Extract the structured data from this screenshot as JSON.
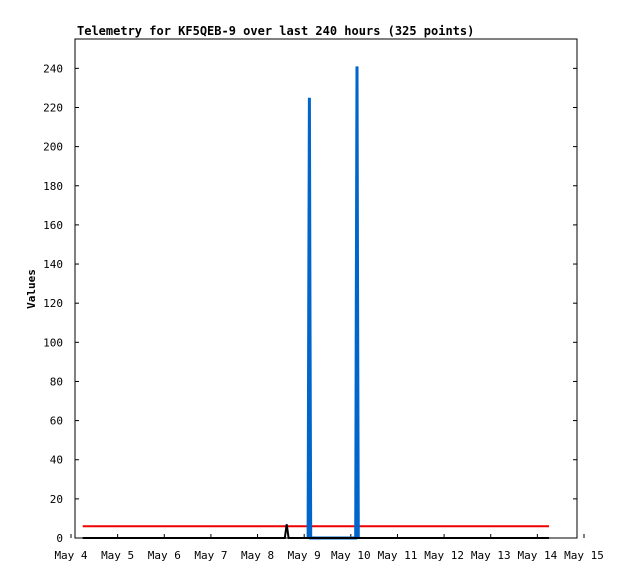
{
  "chart_data": {
    "type": "line",
    "title": "Telemetry for KF5QEB-9 over last 240 hours (325 points)",
    "xlabel": "",
    "ylabel": "Values",
    "x_tick_labels": [
      "May 4",
      "May 5",
      "May 6",
      "May 7",
      "May 8",
      "May 9",
      "May 10",
      "May 11",
      "May 12",
      "May 13",
      "May 14",
      "May 15"
    ],
    "y_ticks": [
      0,
      20,
      40,
      60,
      80,
      100,
      120,
      140,
      160,
      180,
      200,
      220,
      240
    ],
    "xlim": [
      "May 4",
      "May 15"
    ],
    "ylim": [
      0,
      255
    ],
    "grid": false,
    "series": [
      {
        "color": "#ee0000",
        "points": [
          [
            "May 4 06:00",
            6
          ],
          [
            "May 14 06:00",
            6
          ]
        ]
      },
      {
        "color": "#0066cc",
        "points": [
          [
            "May 9 02:00",
            0
          ],
          [
            "May 9 02:20",
            112
          ],
          [
            "May 9 02:40",
            225
          ],
          [
            "May 9 03:00",
            112
          ],
          [
            "May 9 03:20",
            0
          ],
          [
            "May 10 02:30",
            0
          ],
          [
            "May 10 02:50",
            121
          ],
          [
            "May 10 03:10",
            241
          ],
          [
            "May 10 03:30",
            121
          ],
          [
            "May 10 03:50",
            0
          ]
        ]
      },
      {
        "color": "#000000",
        "points": [
          [
            "May 4 06:00",
            0
          ],
          [
            "May 8 14:00",
            0
          ],
          [
            "May 8 15:00",
            7
          ],
          [
            "May 8 16:00",
            0
          ],
          [
            "May 14 06:00",
            0
          ]
        ]
      }
    ],
    "colors": {
      "background": "#ffffff",
      "axis": "#000000"
    }
  }
}
